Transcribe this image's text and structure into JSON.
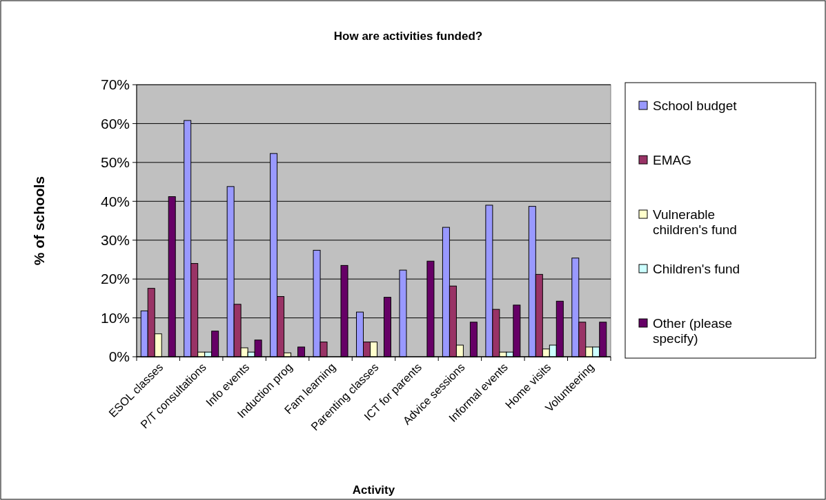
{
  "chart_data": {
    "type": "bar",
    "title": "How are activities funded?",
    "xlabel": "Activity",
    "ylabel": "% of schools",
    "categories": [
      "ESOL classes",
      "P/T consultations",
      "Info events",
      "Induction prog",
      "Fam learning",
      "Parenting classes",
      "ICT for parents",
      "Advice sessions",
      "Informal events",
      "Home visits",
      "Volunteering"
    ],
    "series": [
      {
        "name": "School budget",
        "color": "#9999ff",
        "values": [
          11.8,
          60.8,
          43.8,
          52.3,
          27.4,
          11.5,
          22.3,
          33.3,
          39.0,
          38.7,
          25.4
        ]
      },
      {
        "name": "EMAG",
        "color": "#993366",
        "values": [
          17.6,
          24.0,
          13.5,
          15.5,
          3.8,
          3.8,
          0,
          18.2,
          12.2,
          21.2,
          8.9
        ]
      },
      {
        "name": "Vulnerable children's fund",
        "color": "#ffffcc",
        "values": [
          5.9,
          1.2,
          2.3,
          1.0,
          0,
          3.8,
          0,
          3.0,
          1.2,
          2.0,
          2.5
        ]
      },
      {
        "name": "Children's fund",
        "color": "#ccffff",
        "values": [
          0,
          1.2,
          1.2,
          0,
          0,
          0,
          0,
          0,
          1.2,
          3.0,
          2.5
        ]
      },
      {
        "name": "Other (please specify)",
        "color": "#660066",
        "values": [
          41.2,
          6.6,
          4.3,
          2.5,
          23.5,
          15.3,
          24.6,
          8.9,
          13.3,
          14.3,
          8.9
        ]
      }
    ],
    "ylim": [
      0,
      70
    ],
    "yticks": [
      {
        "value": 0,
        "label": "0%"
      },
      {
        "value": 10,
        "label": "10%"
      },
      {
        "value": 20,
        "label": "20%"
      },
      {
        "value": 30,
        "label": "30%"
      },
      {
        "value": 40,
        "label": "40%"
      },
      {
        "value": 50,
        "label": "50%"
      },
      {
        "value": 60,
        "label": "60%"
      },
      {
        "value": 70,
        "label": "70%"
      }
    ],
    "grid": "y",
    "legend": "right"
  }
}
